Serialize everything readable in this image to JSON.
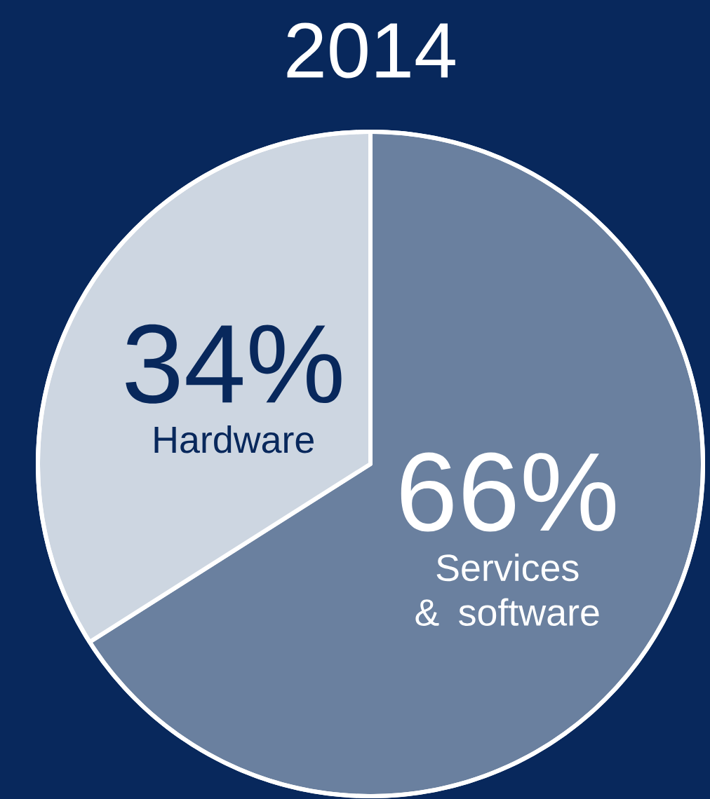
{
  "chart_data": {
    "type": "pie",
    "title": "2014",
    "categories": [
      "Services & software",
      "Hardware"
    ],
    "values": [
      66,
      34
    ],
    "value_labels": [
      "66%",
      "34%"
    ],
    "colors": [
      "#6a809f",
      "#cdd6e1"
    ]
  }
}
